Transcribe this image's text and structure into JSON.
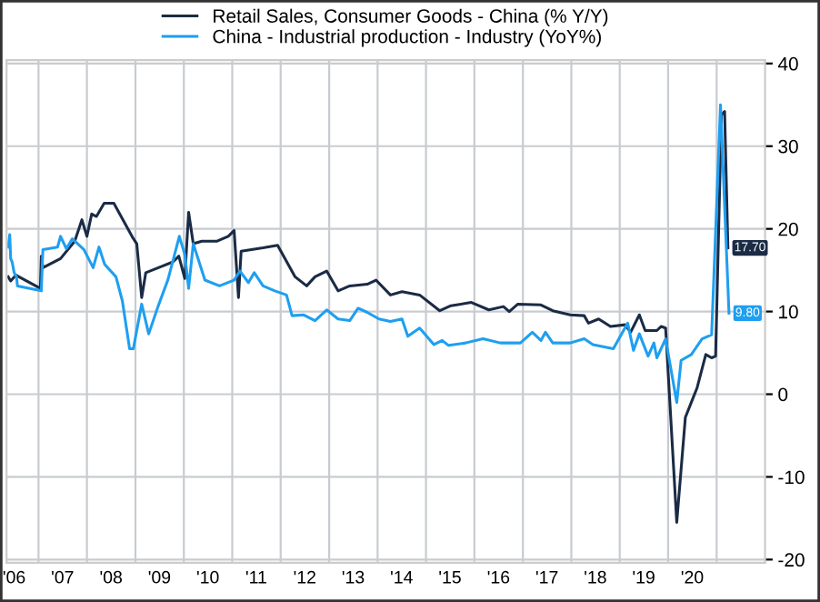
{
  "chart_data": {
    "type": "line",
    "series": [
      {
        "name": "Retail Sales, Consumer Goods - China (% Y/Y)",
        "color": "#1b2b45",
        "x": [
          "2006-05-17",
          "2006-06-05",
          "2006-07-15",
          "2007-01-15",
          "2007-01-22",
          "2007-02-03",
          "2007-06-16",
          "2007-10-01",
          "2007-11-24",
          "2008-01-01",
          "2008-02-06",
          "2008-03-13",
          "2008-05-10",
          "2008-07-22",
          "2008-12-13",
          "2009-01-11",
          "2009-02-17",
          "2009-03-20",
          "2009-06-23",
          "2009-10-11",
          "2009-11-24",
          "2010-01-08",
          "2010-02-06",
          "2010-03-13",
          "2010-05-17",
          "2010-09-05",
          "2010-12-02",
          "2011-01-15",
          "2011-02-17",
          "2011-03-09",
          "2011-05-25",
          "2011-08-21",
          "2011-12-09",
          "2012-04-19",
          "2012-07-15",
          "2012-09-16",
          "2012-12-13",
          "2013-03-09",
          "2013-06-05",
          "2013-10-15",
          "2013-12-20",
          "2014-04-08",
          "2014-07-04",
          "2014-11-14",
          "2015-04-15",
          "2015-07-08",
          "2015-12-09",
          "2016-04-19",
          "2016-08-07",
          "2016-09-20",
          "2016-11-24",
          "2017-05-17",
          "2017-08-14",
          "2017-12-24",
          "2018-04-08",
          "2018-05-10",
          "2018-07-26",
          "2018-10-23",
          "2019-02-10",
          "2019-03-24",
          "2019-05-29",
          "2019-07-12",
          "2019-10-08",
          "2019-11-10",
          "2019-12-13",
          "2020-03-06",
          "2020-05-10",
          "2020-08-07",
          "2020-10-11",
          "2020-11-24",
          "2020-12-24",
          "2021-02-06",
          "2021-03-02",
          "2021-03-27"
        ],
        "values": [
          14.2,
          13.7,
          14.4,
          12.8,
          16.7,
          15.3,
          16.4,
          18.5,
          21.1,
          19.1,
          21.8,
          21.5,
          23.1,
          23.1,
          18.9,
          18.2,
          11.7,
          14.7,
          15.3,
          16.0,
          16.7,
          14.0,
          22.0,
          18.2,
          18.5,
          18.5,
          19.1,
          19.8,
          11.7,
          17.3,
          17.5,
          17.7,
          18.0,
          14.2,
          13.1,
          14.2,
          14.9,
          12.5,
          13.1,
          13.3,
          13.8,
          12.0,
          12.4,
          12.0,
          10.1,
          10.7,
          11.1,
          10.2,
          10.6,
          10.0,
          10.9,
          10.8,
          10.1,
          9.6,
          9.5,
          8.6,
          9.1,
          8.2,
          8.4,
          7.5,
          9.6,
          7.7,
          7.7,
          8.2,
          8.0,
          -15.5,
          -2.8,
          0.8,
          4.8,
          4.4,
          4.6,
          33.8,
          34.2,
          17.7
        ]
      },
      {
        "name": "China - Industrial production - Industry (YoY%)",
        "color": "#1e9ff0",
        "x": [
          "2006-05-17",
          "2006-05-29",
          "2006-06-05",
          "2006-06-16",
          "2006-07-01",
          "2006-07-19",
          "2006-07-26",
          "2007-01-22",
          "2007-02-03",
          "2007-05-25",
          "2007-06-16",
          "2007-07-30",
          "2007-09-13",
          "2007-12-09",
          "2008-02-17",
          "2008-04-01",
          "2008-05-14",
          "2008-08-07",
          "2008-09-24",
          "2008-11-18",
          "2008-12-16",
          "2009-02-17",
          "2009-04-11",
          "2009-06-20",
          "2009-09-02",
          "2009-10-15",
          "2009-11-28",
          "2010-01-08",
          "2010-02-06",
          "2010-03-13",
          "2010-06-09",
          "2010-09-27",
          "2011-01-15",
          "2011-02-28",
          "2011-05-03",
          "2011-06-16",
          "2011-08-21",
          "2011-11-18",
          "2012-02-14",
          "2012-03-27",
          "2012-06-20",
          "2012-09-16",
          "2012-12-13",
          "2013-03-09",
          "2013-06-05",
          "2013-08-07",
          "2013-10-15",
          "2014-01-11",
          "2014-04-08",
          "2014-07-04",
          "2014-08-17",
          "2014-11-14",
          "2015-03-02",
          "2015-05-03",
          "2015-06-20",
          "2015-10-26",
          "2016-03-06",
          "2016-07-15",
          "2016-12-13",
          "2017-03-13",
          "2017-05-17",
          "2017-06-20",
          "2017-08-14",
          "2017-12-24",
          "2018-04-08",
          "2018-06-13",
          "2018-11-14",
          "2019-03-02",
          "2019-04-15",
          "2019-05-29",
          "2019-08-03",
          "2019-09-16",
          "2019-10-08",
          "2019-12-13",
          "2020-03-06",
          "2020-04-08",
          "2020-06-24",
          "2020-09-13",
          "2020-11-24",
          "2021-01-30",
          "2021-04-04"
        ],
        "values": [
          17.8,
          19.3,
          16.4,
          16.0,
          14.7,
          14.2,
          13.1,
          12.5,
          17.5,
          17.8,
          19.1,
          17.6,
          18.8,
          17.5,
          15.3,
          17.8,
          15.7,
          14.2,
          11.3,
          5.5,
          5.5,
          10.9,
          7.3,
          10.6,
          13.8,
          16.4,
          19.1,
          16.9,
          12.8,
          18.2,
          13.8,
          13.1,
          13.8,
          14.9,
          13.5,
          14.7,
          13.1,
          12.5,
          12.0,
          9.5,
          9.6,
          8.9,
          10.2,
          9.1,
          8.9,
          10.4,
          9.9,
          9.1,
          8.8,
          9.1,
          7.0,
          8.0,
          6.0,
          6.5,
          5.9,
          6.2,
          6.7,
          6.2,
          6.2,
          7.5,
          6.5,
          7.5,
          6.2,
          6.2,
          6.7,
          6.0,
          5.5,
          8.6,
          5.3,
          7.3,
          4.6,
          6.2,
          4.4,
          6.7,
          -1.0,
          4.1,
          4.8,
          6.7,
          7.2,
          35.0,
          9.8
        ]
      }
    ],
    "xlim": [
      "2006-05-05",
      "2022-01-01"
    ],
    "xticks": [
      {
        "value": "2006-07-01",
        "label": "'06"
      },
      {
        "value": "2007-01-01",
        "label": null
      },
      {
        "value": "2007-07-01",
        "label": "'07"
      },
      {
        "value": "2008-01-01",
        "label": null
      },
      {
        "value": "2008-07-01",
        "label": "'08"
      },
      {
        "value": "2009-01-01",
        "label": null
      },
      {
        "value": "2009-07-01",
        "label": "'09"
      },
      {
        "value": "2010-01-01",
        "label": null
      },
      {
        "value": "2010-07-01",
        "label": "'10"
      },
      {
        "value": "2011-01-01",
        "label": null
      },
      {
        "value": "2011-07-01",
        "label": "'11"
      },
      {
        "value": "2012-01-01",
        "label": null
      },
      {
        "value": "2012-07-01",
        "label": "'12"
      },
      {
        "value": "2013-01-01",
        "label": null
      },
      {
        "value": "2013-07-01",
        "label": "'13"
      },
      {
        "value": "2014-01-01",
        "label": null
      },
      {
        "value": "2014-07-01",
        "label": "'14"
      },
      {
        "value": "2015-01-01",
        "label": null
      },
      {
        "value": "2015-07-01",
        "label": "'15"
      },
      {
        "value": "2016-01-01",
        "label": null
      },
      {
        "value": "2016-07-01",
        "label": "'16"
      },
      {
        "value": "2017-01-01",
        "label": null
      },
      {
        "value": "2017-07-01",
        "label": "'17"
      },
      {
        "value": "2018-01-01",
        "label": null
      },
      {
        "value": "2018-07-01",
        "label": "'18"
      },
      {
        "value": "2019-01-01",
        "label": null
      },
      {
        "value": "2019-07-01",
        "label": "'19"
      },
      {
        "value": "2020-01-01",
        "label": null
      },
      {
        "value": "2020-07-01",
        "label": "'20"
      },
      {
        "value": "2021-01-01",
        "label": null
      }
    ],
    "ylim": [
      -20.4,
      40.4
    ],
    "yticks": [
      -20,
      -10,
      0,
      10,
      20,
      30,
      40
    ],
    "grid": true,
    "legend": "top",
    "annotations": [
      {
        "text": "17.70",
        "x": "2021-03-27",
        "y": 17.7
      },
      {
        "text": "9.80",
        "x": "2021-04-04",
        "y": 9.8
      }
    ]
  }
}
